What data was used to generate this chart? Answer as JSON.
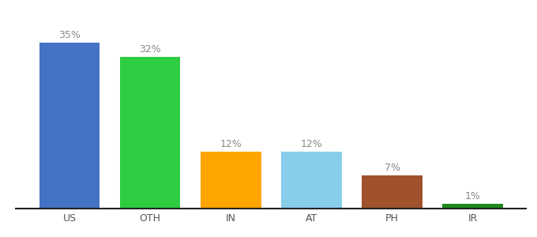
{
  "categories": [
    "US",
    "OTH",
    "IN",
    "AT",
    "PH",
    "IR"
  ],
  "values": [
    35,
    32,
    12,
    12,
    7,
    1
  ],
  "labels": [
    "35%",
    "32%",
    "12%",
    "12%",
    "7%",
    "1%"
  ],
  "bar_colors": [
    "#4472C4",
    "#2ECC40",
    "#FFA500",
    "#87CEEB",
    "#A0522D",
    "#1E8A1E"
  ],
  "ylim": [
    0,
    40
  ],
  "background_color": "#ffffff",
  "label_fontsize": 9,
  "tick_fontsize": 9,
  "bar_width": 0.75,
  "label_color": "#888888"
}
